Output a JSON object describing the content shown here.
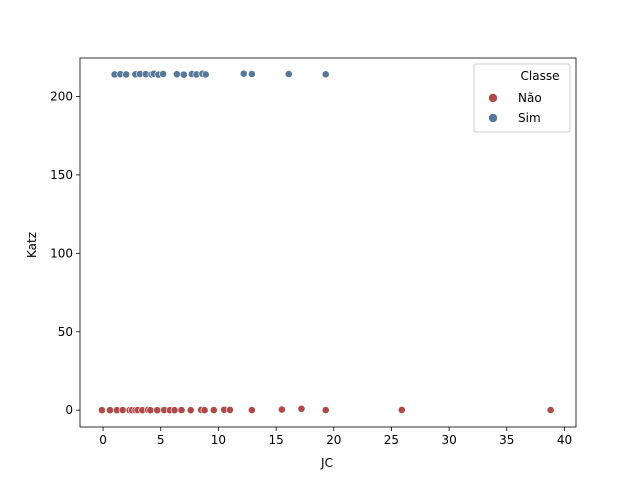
{
  "chart_data": {
    "type": "scatter",
    "xlabel": "JC",
    "ylabel": "Katz",
    "xlim": [
      -2,
      41
    ],
    "ylim": [
      -10.7,
      224.5
    ],
    "xticks": [
      0,
      5,
      10,
      15,
      20,
      25,
      30,
      35,
      40
    ],
    "yticks": [
      0,
      50,
      100,
      150,
      200
    ],
    "grid": false,
    "legend": {
      "title": "Classe",
      "placement": "top-right",
      "entries": [
        "Não",
        "Sim"
      ]
    },
    "series": [
      {
        "name": "Não",
        "color": "#b04a4a",
        "points": [
          [
            -0.1,
            0.0
          ],
          [
            0.6,
            0.0
          ],
          [
            1.2,
            0.0
          ],
          [
            1.7,
            0.1
          ],
          [
            2.3,
            0.0
          ],
          [
            2.5,
            0.0
          ],
          [
            2.8,
            0.0
          ],
          [
            3.0,
            0.1
          ],
          [
            3.4,
            0.0
          ],
          [
            3.9,
            0.2
          ],
          [
            4.1,
            0.0
          ],
          [
            4.7,
            0.0
          ],
          [
            5.3,
            0.1
          ],
          [
            5.8,
            0.0
          ],
          [
            6.2,
            0.0
          ],
          [
            6.8,
            0.1
          ],
          [
            7.6,
            0.0
          ],
          [
            8.5,
            0.2
          ],
          [
            8.8,
            0.0
          ],
          [
            9.6,
            0.1
          ],
          [
            10.5,
            0.3
          ],
          [
            11.0,
            0.2
          ],
          [
            12.9,
            0.1
          ],
          [
            15.5,
            0.4
          ],
          [
            17.2,
            0.9
          ],
          [
            19.3,
            0.1
          ],
          [
            25.9,
            0.2
          ],
          [
            38.8,
            0.1
          ]
        ]
      },
      {
        "name": "Sim",
        "color": "#58789a",
        "points": [
          [
            1.0,
            214.0
          ],
          [
            1.5,
            214.2
          ],
          [
            2.0,
            214.0
          ],
          [
            2.8,
            214.1
          ],
          [
            3.2,
            214.3
          ],
          [
            3.7,
            214.2
          ],
          [
            4.2,
            214.0
          ],
          [
            4.4,
            214.4
          ],
          [
            4.8,
            213.9
          ],
          [
            5.2,
            214.3
          ],
          [
            6.4,
            214.2
          ],
          [
            7.0,
            213.9
          ],
          [
            7.7,
            214.3
          ],
          [
            8.1,
            214.0
          ],
          [
            8.6,
            214.4
          ],
          [
            8.9,
            214.0
          ],
          [
            12.2,
            214.5
          ],
          [
            12.9,
            214.3
          ],
          [
            16.1,
            214.3
          ],
          [
            19.3,
            214.1
          ]
        ]
      }
    ]
  }
}
